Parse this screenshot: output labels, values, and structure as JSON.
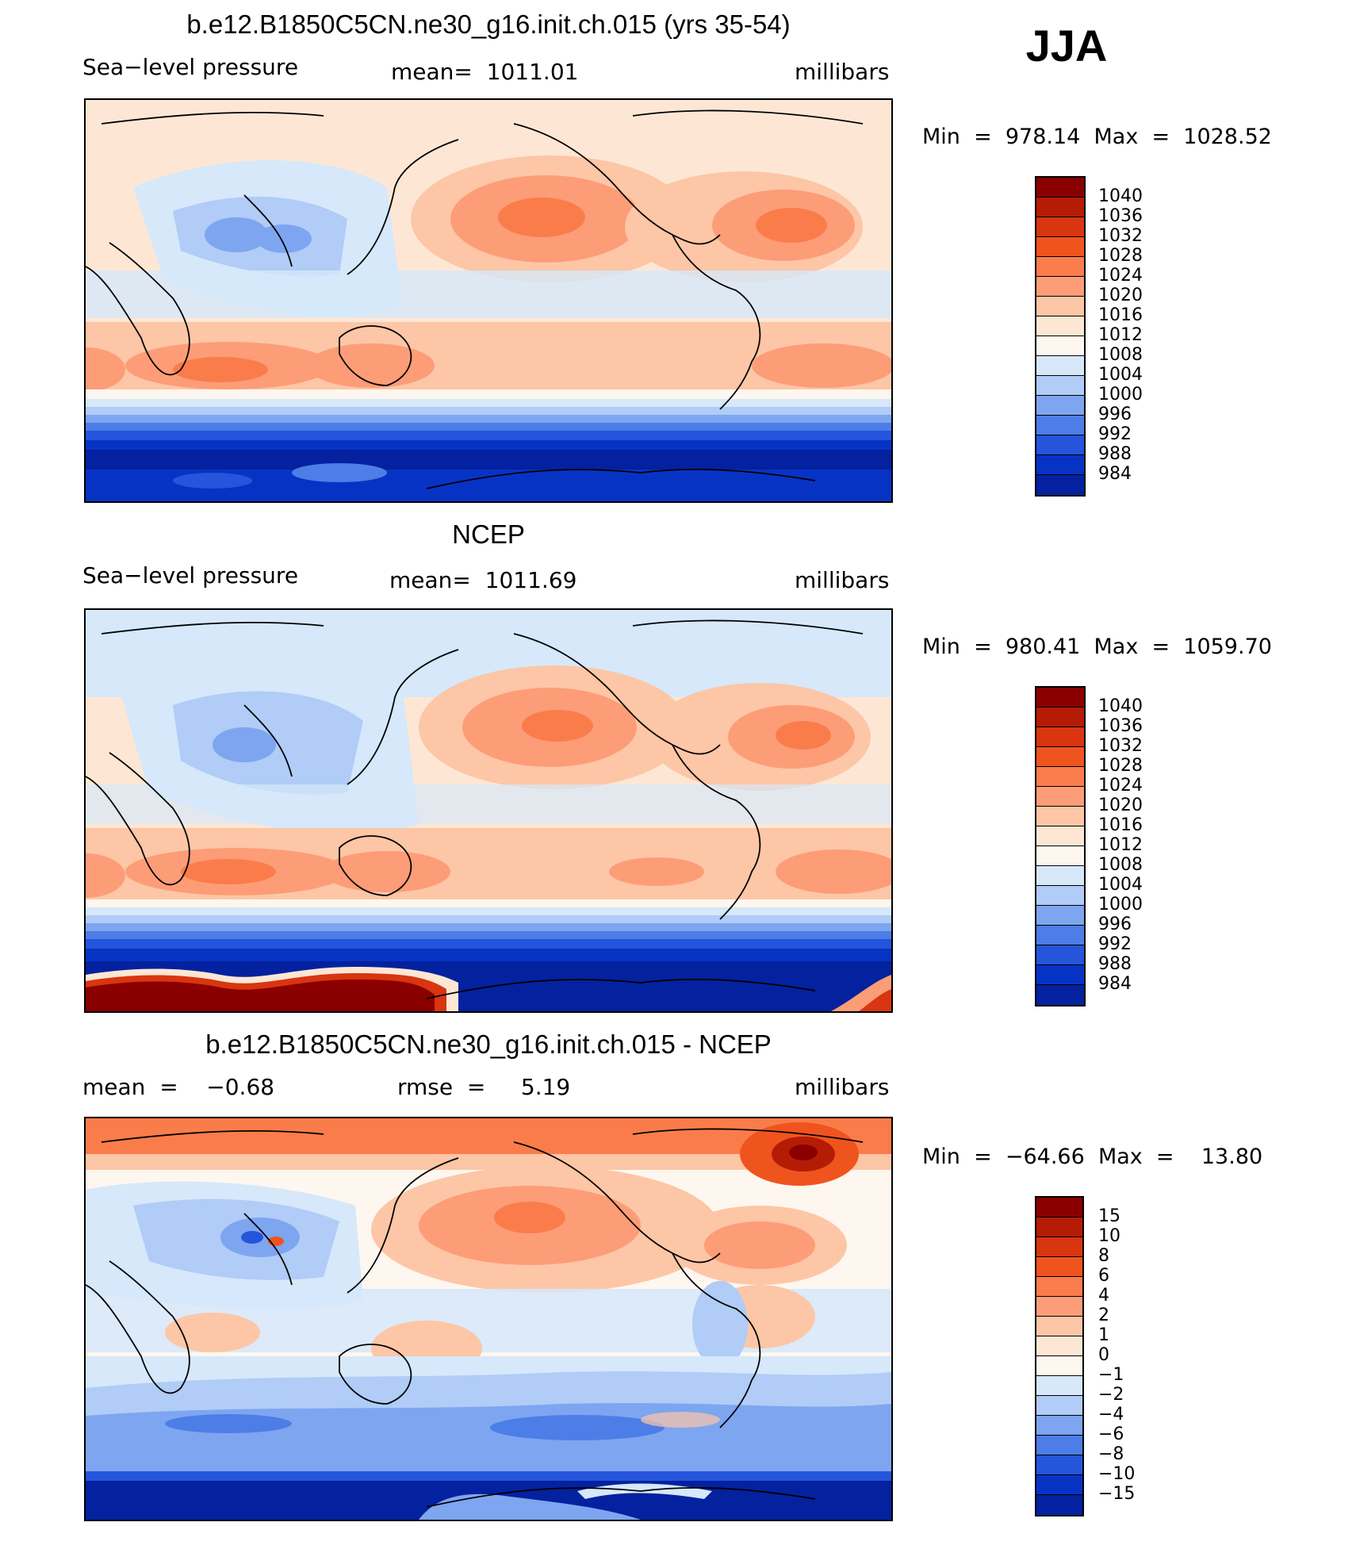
{
  "season": "JJA",
  "chart_data": [
    {
      "type": "heatmap",
      "title": "b.e12.B1850C5CN.ne30_g16.init.ch.015 (yrs 35-54)",
      "left_label": "Sea−level pressure",
      "center_label": "mean=  1011.01",
      "units": "millibars",
      "min_label": "Min  =  978.14  Max  =  1028.52",
      "colorbar": {
        "levels": [
          "1040",
          "1036",
          "1032",
          "1028",
          "1024",
          "1020",
          "1016",
          "1012",
          "1008",
          "1004",
          "1000",
          "996",
          "992",
          "988",
          "984"
        ],
        "colors": [
          "#8a0000",
          "#b51c05",
          "#d83510",
          "#f0541e",
          "#fb7c4b",
          "#fc9d78",
          "#fdc6a6",
          "#fde7d4",
          "#fef7ef",
          "#d6e8fa",
          "#b0ccf7",
          "#7ea5f0",
          "#4d7de6",
          "#2455db",
          "#0733c5",
          "#04219f"
        ]
      }
    },
    {
      "type": "heatmap",
      "title": "NCEP",
      "left_label": "Sea−level pressure",
      "center_label": "mean=  1011.69",
      "units": "millibars",
      "min_label": "Min  =  980.41  Max  =  1059.70",
      "colorbar": {
        "levels": [
          "1040",
          "1036",
          "1032",
          "1028",
          "1024",
          "1020",
          "1016",
          "1012",
          "1008",
          "1004",
          "1000",
          "996",
          "992",
          "988",
          "984"
        ],
        "colors": [
          "#8a0000",
          "#b51c05",
          "#d83510",
          "#f0541e",
          "#fb7c4b",
          "#fc9d78",
          "#fdc6a6",
          "#fde7d4",
          "#fef7ef",
          "#d6e8fa",
          "#b0ccf7",
          "#7ea5f0",
          "#4d7de6",
          "#2455db",
          "#0733c5",
          "#04219f"
        ]
      }
    },
    {
      "type": "heatmap",
      "title": "b.e12.B1850C5CN.ne30_g16.init.ch.015 - NCEP",
      "left_label": "mean  =    −0.68",
      "center_label": "rmse  =     5.19",
      "units": "millibars",
      "min_label": "Min  =  −64.66  Max  =    13.80",
      "colorbar": {
        "levels": [
          "15",
          "10",
          "8",
          "6",
          "4",
          "2",
          "1",
          "0",
          "−1",
          "−2",
          "−4",
          "−6",
          "−8",
          "−10",
          "−15"
        ],
        "colors": [
          "#8a0000",
          "#b51c05",
          "#d83510",
          "#f0541e",
          "#fb7c4b",
          "#fc9d78",
          "#fdc6a6",
          "#fde7d4",
          "#fef7ef",
          "#d6e8fa",
          "#b0ccf7",
          "#7ea5f0",
          "#4d7de6",
          "#2455db",
          "#0733c5",
          "#04219f"
        ]
      }
    }
  ]
}
